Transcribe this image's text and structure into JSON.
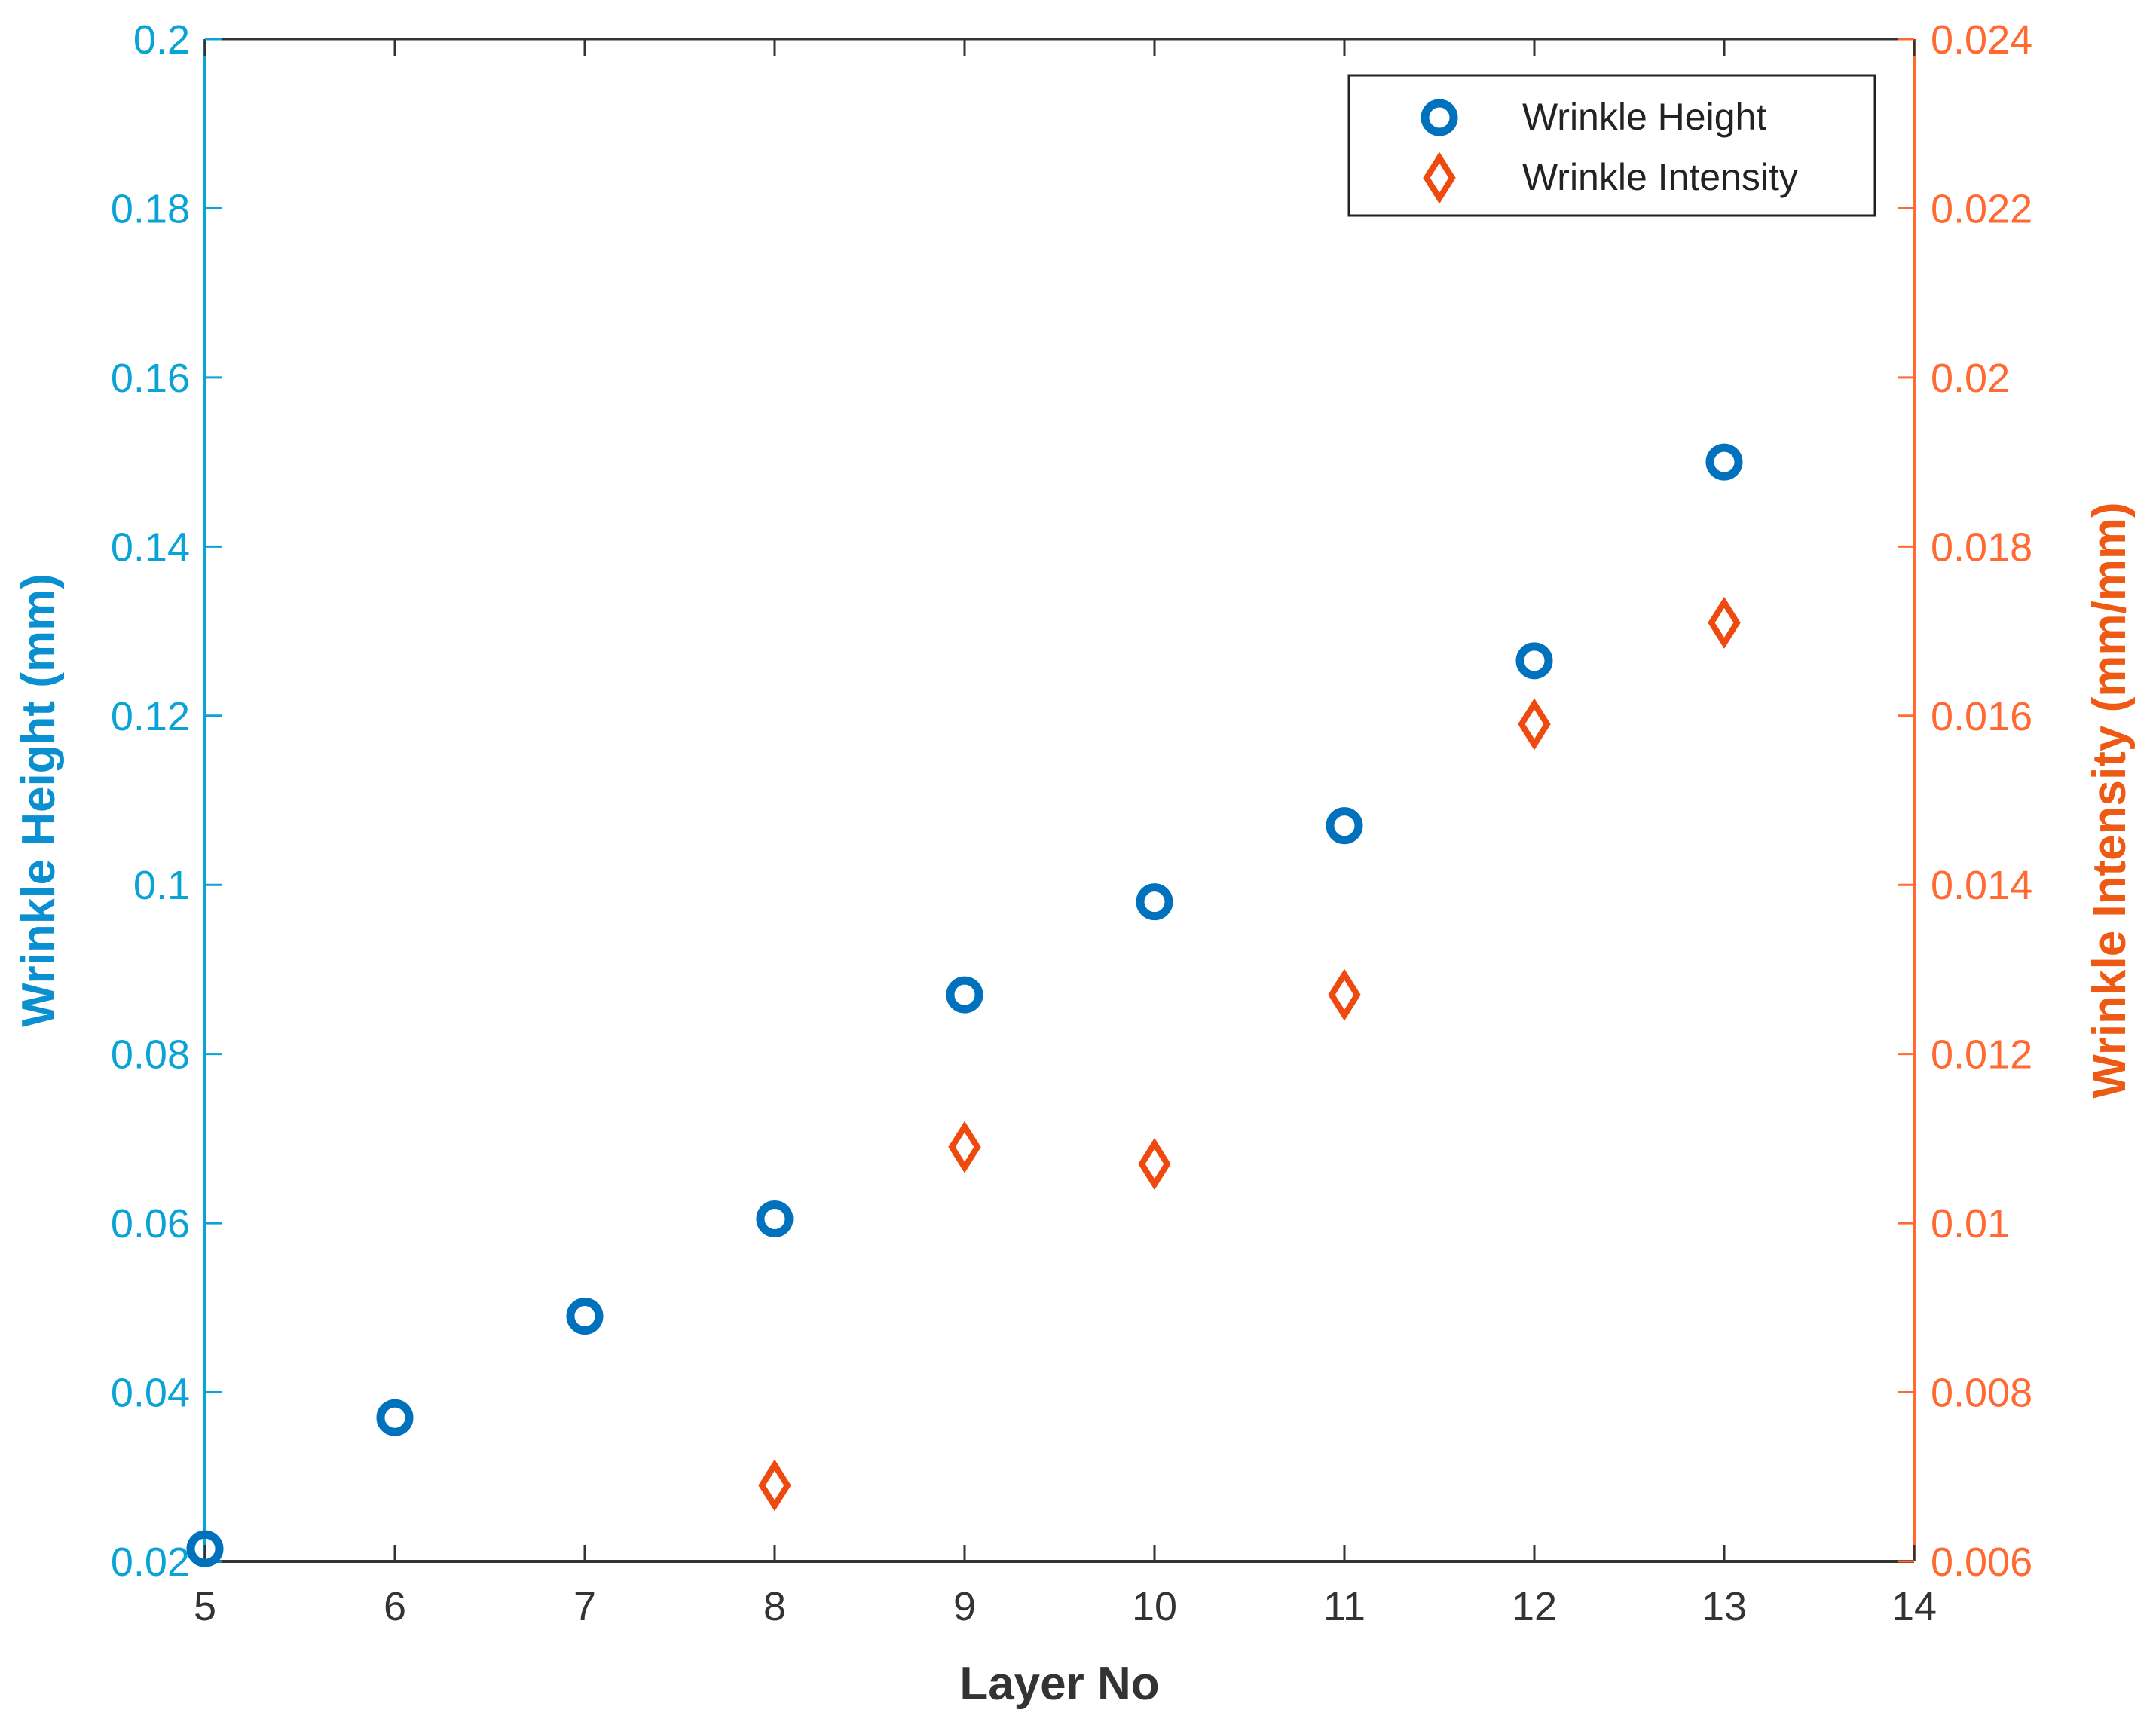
{
  "chart_data": {
    "type": "scatter",
    "xlabel": "Layer No",
    "ylabel_left": "Wrinkle Height (mm)",
    "ylabel_right": "Wrinkle Intensity (mm/mm)",
    "xlim": [
      5,
      14
    ],
    "ylim_left": [
      0.02,
      0.2
    ],
    "ylim_right": [
      0.006,
      0.024
    ],
    "x_ticks": [
      "5",
      "6",
      "7",
      "8",
      "9",
      "10",
      "11",
      "12",
      "13",
      "14"
    ],
    "y_left_ticks": [
      "0.02",
      "0.04",
      "0.06",
      "0.08",
      "0.1",
      "0.12",
      "0.14",
      "0.16",
      "0.18",
      "0.2"
    ],
    "y_right_ticks": [
      "0.006",
      "0.008",
      "0.01",
      "0.012",
      "0.014",
      "0.016",
      "0.018",
      "0.02",
      "0.022",
      "0.024"
    ],
    "grid": false,
    "legend_position": "top-right",
    "series": [
      {
        "name": "Wrinkle Height",
        "axis": "left",
        "marker": "circle",
        "color": "#0072BD",
        "points": [
          {
            "x": 5,
            "y": 0.0215
          },
          {
            "x": 6,
            "y": 0.037
          },
          {
            "x": 7,
            "y": 0.049
          },
          {
            "x": 8,
            "y": 0.0605
          },
          {
            "x": 9,
            "y": 0.087
          },
          {
            "x": 10,
            "y": 0.098
          },
          {
            "x": 11,
            "y": 0.107
          },
          {
            "x": 12,
            "y": 0.1265
          },
          {
            "x": 13,
            "y": 0.15
          }
        ]
      },
      {
        "name": "Wrinkle Intensity",
        "axis": "right",
        "marker": "diamond",
        "color": "#EE4A0F",
        "points": [
          {
            "x": 8,
            "y": 0.0069
          },
          {
            "x": 9,
            "y": 0.0109
          },
          {
            "x": 10,
            "y": 0.0107
          },
          {
            "x": 11,
            "y": 0.0127
          },
          {
            "x": 12,
            "y": 0.0159
          },
          {
            "x": 13,
            "y": 0.0171
          }
        ]
      }
    ],
    "colors": {
      "left_axis": "#0AA3D6",
      "left_title": "#0A8FD0",
      "right_axis": "#FF6A33",
      "right_title": "#EE5A14",
      "x_axis": "#333333"
    }
  }
}
